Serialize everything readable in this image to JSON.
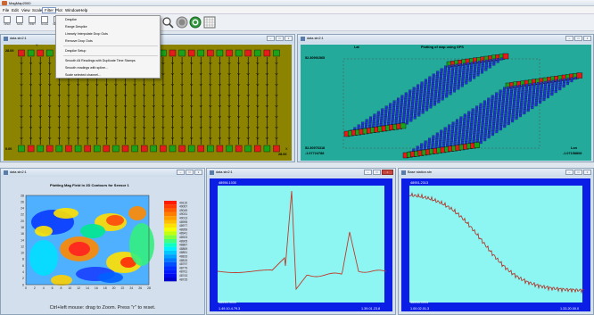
{
  "app": {
    "title": "MagMap2000"
  },
  "menu": {
    "items": [
      "File",
      "Edit",
      "View",
      "Scale",
      "Filter",
      "Plot",
      "Window",
      "Help"
    ],
    "open_index": 4
  },
  "toolbar": {
    "buttons": [
      "OPEN",
      "SAVE",
      "PRINT",
      "SCALE",
      "SELECT"
    ]
  },
  "filter_menu": {
    "items": [
      "Despike",
      "Range Despike",
      "Linearly Interpolate Drop Outs",
      "Remove Drop Outs",
      "Despike Setup",
      "Smooth All Readings with Duplicate Time Stamps",
      "Smooth readings with spline...",
      "Scale selected channel..."
    ]
  },
  "panels": {
    "p1": {
      "title": "data.stn2:1",
      "top_left_value": "28.00",
      "bottom_left_value": "0.00",
      "bottom_right_value": "28.00",
      "top_marker": "Y",
      "right_marker": "X"
    },
    "p2": {
      "title": "data.stn2:1",
      "lat_label": "Lat",
      "chart_title": "Plotting of map using GPS",
      "top_left_value": "52.30991565",
      "bottom_left_value": "52.30976318",
      "bottom_left_value2": "-1.07724788",
      "lon_label": "Lon",
      "bottom_right_value": "-1.07158808"
    },
    "p3": {
      "title": "data.stn2:1",
      "chart_title": "Plotting Mag Field in 2D Contours for Sensor 1",
      "hint": "Ctrl+left mouse: drag to Zoom. Press \"r\" to reset.",
      "y_ticks": [
        "28",
        "26",
        "24",
        "22",
        "20",
        "18",
        "16",
        "14",
        "12",
        "10",
        "8",
        "6",
        "4",
        "2",
        "0"
      ],
      "x_ticks": [
        "0",
        "2",
        "4",
        "6",
        "8",
        "10",
        "12",
        "14",
        "16",
        "18",
        "20",
        "22",
        "24",
        "26",
        "28"
      ],
      "legend_values": [
        "49115",
        "49067",
        "49049",
        "49031",
        "49013",
        "48995",
        "48977",
        "48959",
        "48941",
        "48923",
        "48905",
        "48887",
        "48869",
        "48851",
        "48833",
        "48815",
        "48797",
        "48779",
        "48761",
        "48743",
        "48725"
      ]
    },
    "p4": {
      "title": "data.stn2:1",
      "top_left_value": "48956.1030",
      "bottom_left_value": "48646.3000",
      "bottom_left_value2": "1.49.10.4.79.3",
      "bottom_right_value": "1.39.01.23.8"
    },
    "p5": {
      "title": "Base station.stn",
      "top_left_value": "48951.2313",
      "bottom_left_value": "48658.0004",
      "bottom_left_value2": "1.00.02.01.3",
      "bottom_right_value": "1.33.20.00.0"
    }
  },
  "colors": {
    "olive_bg": "#8c8400",
    "teal_bg": "#23aa9a",
    "plot_blue": "#0a1ee6",
    "plot_cyan": "#8ef6f2",
    "trace_red": "#c0392b"
  }
}
